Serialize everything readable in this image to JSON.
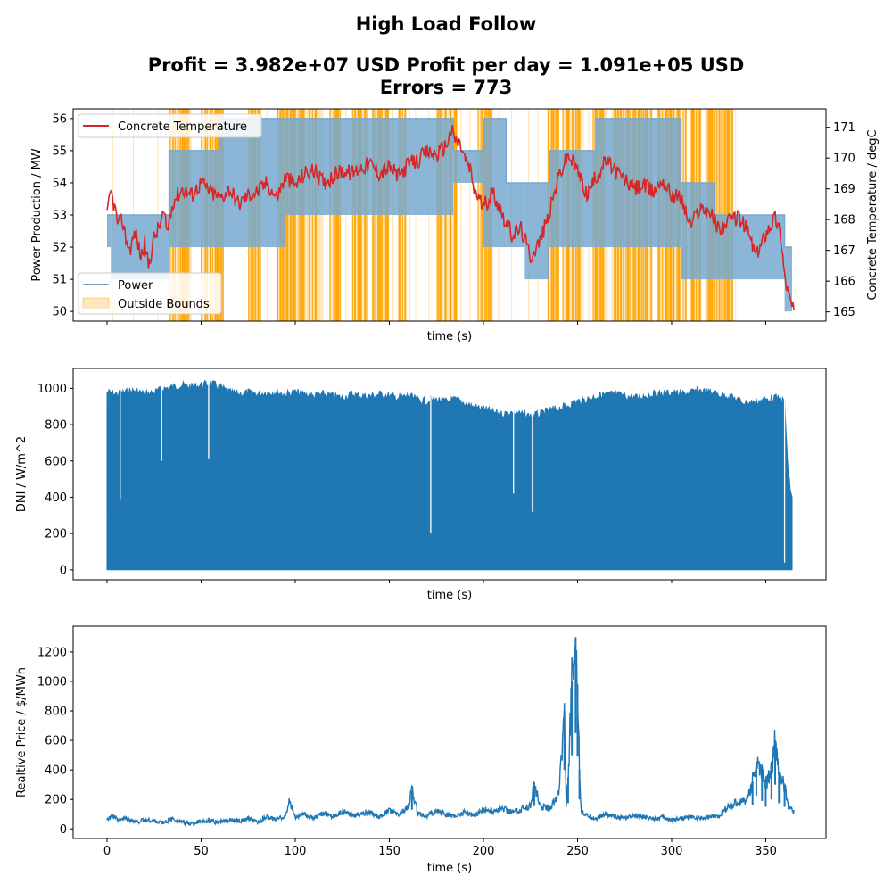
{
  "figure": {
    "title": "High Load Follow",
    "subtitle": "Profit = 3.982e+07 USD  Profit per day = 1.091e+05 USD",
    "subtitle2": "Errors = 773"
  },
  "colors": {
    "power": "#77a9d0",
    "temperature": "#d62728",
    "bounds": "#ffa500",
    "dni": "#1f77b4",
    "price": "#1f77b4"
  },
  "chart_data": [
    {
      "type": "line",
      "panel": "power-temperature",
      "xlabel": "time (s)",
      "ylabel": "Power Production / MW",
      "ylabel_right": "Concrete Temperature / degC",
      "xlim": [
        -18,
        382
      ],
      "ylim": [
        49.7,
        56.3
      ],
      "ylim_right": [
        164.7,
        171.6
      ],
      "yticks": [
        50,
        51,
        52,
        53,
        54,
        55,
        56
      ],
      "yticks_right": [
        165,
        166,
        167,
        168,
        169,
        170,
        171
      ],
      "xticks": [
        0,
        50,
        100,
        150,
        200,
        250,
        300,
        350
      ],
      "show_xtick_labels": false,
      "legend": [
        {
          "label": "Concrete Temperature",
          "position": "top-left"
        },
        {
          "label": "Power",
          "position": "bottom-left"
        },
        {
          "label": "Outside Bounds",
          "position": "bottom-left"
        }
      ],
      "power_bands": [
        {
          "x0": 0,
          "x1": 2,
          "lo": 52,
          "hi": 53
        },
        {
          "x0": 2,
          "x1": 33,
          "lo": 51,
          "hi": 53
        },
        {
          "x0": 33,
          "x1": 60,
          "lo": 52,
          "hi": 55
        },
        {
          "x0": 60,
          "x1": 95,
          "lo": 52,
          "hi": 56
        },
        {
          "x0": 95,
          "x1": 140,
          "lo": 53,
          "hi": 56
        },
        {
          "x0": 140,
          "x1": 184,
          "lo": 53,
          "hi": 56
        },
        {
          "x0": 184,
          "x1": 200,
          "lo": 54,
          "hi": 55
        },
        {
          "x0": 200,
          "x1": 212,
          "lo": 52,
          "hi": 56
        },
        {
          "x0": 212,
          "x1": 222,
          "lo": 52,
          "hi": 54
        },
        {
          "x0": 222,
          "x1": 235,
          "lo": 51,
          "hi": 54
        },
        {
          "x0": 235,
          "x1": 260,
          "lo": 52,
          "hi": 55
        },
        {
          "x0": 260,
          "x1": 305,
          "lo": 52,
          "hi": 56
        },
        {
          "x0": 305,
          "x1": 323,
          "lo": 51,
          "hi": 54
        },
        {
          "x0": 323,
          "x1": 360,
          "lo": 51,
          "hi": 53
        },
        {
          "x0": 360,
          "x1": 364,
          "lo": 50,
          "hi": 52
        }
      ],
      "temperature_series": {
        "name": "Concrete Temperature",
        "x": [
          0,
          2,
          4,
          6,
          8,
          10,
          12,
          15,
          18,
          20,
          22,
          25,
          28,
          30,
          32,
          35,
          40,
          45,
          50,
          55,
          60,
          65,
          70,
          75,
          80,
          85,
          90,
          95,
          100,
          105,
          110,
          115,
          120,
          125,
          130,
          135,
          140,
          145,
          150,
          155,
          160,
          165,
          170,
          175,
          180,
          183,
          185,
          188,
          190,
          193,
          195,
          200,
          205,
          210,
          215,
          220,
          225,
          230,
          235,
          240,
          245,
          250,
          255,
          260,
          265,
          270,
          275,
          280,
          285,
          290,
          295,
          300,
          305,
          310,
          315,
          320,
          325,
          330,
          335,
          340,
          345,
          350,
          355,
          358,
          360,
          362,
          365
        ],
        "y": [
          168.1,
          168.9,
          168.4,
          167.8,
          168.0,
          167.4,
          167.0,
          167.6,
          166.8,
          167.2,
          166.5,
          167.4,
          167.8,
          168.2,
          167.6,
          168.6,
          169.0,
          168.8,
          169.2,
          168.9,
          168.7,
          169.0,
          168.5,
          168.8,
          168.9,
          169.2,
          168.7,
          169.4,
          169.1,
          169.5,
          169.6,
          169.2,
          169.4,
          169.6,
          169.5,
          169.7,
          169.8,
          169.5,
          169.7,
          169.4,
          169.8,
          169.9,
          170.2,
          170.1,
          170.4,
          170.9,
          170.6,
          170.4,
          170.0,
          169.6,
          169.0,
          168.4,
          168.9,
          168.2,
          167.5,
          167.7,
          166.8,
          167.3,
          168.2,
          169.4,
          170.1,
          169.6,
          168.8,
          169.4,
          169.9,
          169.6,
          169.3,
          169.0,
          169.1,
          168.9,
          169.3,
          168.8,
          168.7,
          167.8,
          168.4,
          168.3,
          167.7,
          167.9,
          168.1,
          167.7,
          166.8,
          167.6,
          168.1,
          167.5,
          166.2,
          165.6,
          165.0
        ]
      },
      "outside_bounds_intervals": [
        [
          33,
          45
        ],
        [
          50,
          62
        ],
        [
          75,
          82
        ],
        [
          90,
          115
        ],
        [
          118,
          124
        ],
        [
          130,
          138
        ],
        [
          141,
          150
        ],
        [
          155,
          159
        ],
        [
          175,
          186
        ],
        [
          197,
          205
        ],
        [
          234,
          240
        ],
        [
          242,
          252
        ],
        [
          258,
          266
        ],
        [
          268,
          290
        ],
        [
          292,
          305
        ],
        [
          306,
          308
        ],
        [
          310,
          316
        ],
        [
          319,
          333
        ]
      ],
      "outside_bounds_ticks": [
        3,
        14,
        27,
        68,
        85,
        127,
        152,
        161,
        164,
        171,
        188,
        193,
        208,
        215,
        224,
        229,
        253,
        256,
        310,
        318,
        322,
        325,
        328,
        334
      ]
    },
    {
      "type": "line",
      "panel": "dni",
      "xlabel": "time (s)",
      "ylabel": "DNI / W/m^2",
      "xlim": [
        -18,
        382
      ],
      "ylim": [
        -55,
        1110
      ],
      "yticks": [
        0,
        200,
        400,
        600,
        800,
        1000
      ],
      "xticks": [
        0,
        50,
        100,
        150,
        200,
        250,
        300,
        350
      ],
      "show_xtick_labels": false,
      "envelope": {
        "x": [
          0,
          5,
          10,
          15,
          20,
          25,
          30,
          35,
          40,
          45,
          50,
          55,
          60,
          65,
          70,
          75,
          80,
          85,
          90,
          95,
          100,
          105,
          110,
          115,
          120,
          125,
          130,
          135,
          140,
          145,
          150,
          155,
          160,
          165,
          170,
          175,
          180,
          185,
          190,
          195,
          200,
          205,
          210,
          215,
          220,
          225,
          230,
          235,
          240,
          245,
          250,
          255,
          260,
          265,
          270,
          275,
          280,
          285,
          290,
          295,
          300,
          305,
          310,
          315,
          320,
          325,
          330,
          335,
          340,
          345,
          350,
          355,
          360,
          362,
          364
        ],
        "y": [
          1000,
          990,
          1000,
          1010,
          990,
          1000,
          1020,
          1030,
          1040,
          1030,
          1040,
          1050,
          1030,
          1000,
          990,
          1000,
          990,
          1000,
          1000,
          990,
          1000,
          990,
          980,
          990,
          980,
          970,
          990,
          980,
          980,
          990,
          980,
          970,
          980,
          960,
          950,
          960,
          950,
          960,
          940,
          920,
          910,
          890,
          880,
          890,
          880,
          870,
          880,
          900,
          910,
          930,
          950,
          960,
          980,
          990,
          990,
          980,
          970,
          980,
          990,
          990,
          1000,
          990,
          1000,
          1010,
          1000,
          990,
          980,
          960,
          940,
          950,
          960,
          970,
          950,
          540,
          410
        ]
      },
      "spikes": [
        {
          "x": 7,
          "y": 390
        },
        {
          "x": 29,
          "y": 600
        },
        {
          "x": 54,
          "y": 610
        },
        {
          "x": 172,
          "y": 200
        },
        {
          "x": 216,
          "y": 420
        },
        {
          "x": 226,
          "y": 320
        },
        {
          "x": 360,
          "y": 40
        }
      ]
    },
    {
      "type": "line",
      "panel": "price",
      "xlabel": "time (s)",
      "ylabel": "Realtive Price / $/MWh",
      "xlim": [
        -18,
        382
      ],
      "ylim": [
        -65,
        1375
      ],
      "yticks": [
        0,
        200,
        400,
        600,
        800,
        1000,
        1200
      ],
      "xticks": [
        0,
        50,
        100,
        150,
        200,
        250,
        300,
        350
      ],
      "show_xtick_labels": true,
      "series": {
        "name": "Price",
        "x": [
          0,
          3,
          6,
          10,
          15,
          20,
          25,
          30,
          35,
          40,
          45,
          50,
          55,
          60,
          65,
          70,
          75,
          80,
          85,
          90,
          95,
          97,
          100,
          105,
          110,
          115,
          120,
          125,
          130,
          135,
          140,
          145,
          150,
          155,
          160,
          162,
          165,
          170,
          175,
          180,
          185,
          190,
          195,
          200,
          205,
          210,
          215,
          220,
          225,
          227,
          230,
          235,
          240,
          243,
          244,
          245,
          247,
          249,
          250,
          251,
          252,
          255,
          260,
          265,
          270,
          275,
          280,
          285,
          290,
          295,
          300,
          305,
          310,
          315,
          320,
          325,
          330,
          335,
          340,
          343,
          345,
          348,
          350,
          353,
          355,
          357,
          360,
          362,
          365
        ],
        "y": [
          70,
          90,
          55,
          75,
          45,
          60,
          55,
          40,
          70,
          45,
          35,
          55,
          50,
          45,
          60,
          50,
          70,
          45,
          80,
          65,
          90,
          190,
          80,
          100,
          70,
          110,
          85,
          120,
          95,
          105,
          110,
          80,
          125,
          95,
          150,
          260,
          110,
          90,
          120,
          100,
          85,
          115,
          90,
          130,
          120,
          140,
          115,
          130,
          160,
          310,
          150,
          140,
          230,
          800,
          180,
          350,
          1000,
          1300,
          980,
          400,
          120,
          90,
          70,
          100,
          85,
          70,
          90,
          80,
          70,
          80,
          60,
          75,
          80,
          70,
          80,
          90,
          150,
          180,
          200,
          320,
          450,
          380,
          300,
          400,
          600,
          350,
          300,
          150,
          120
        ]
      }
    }
  ]
}
